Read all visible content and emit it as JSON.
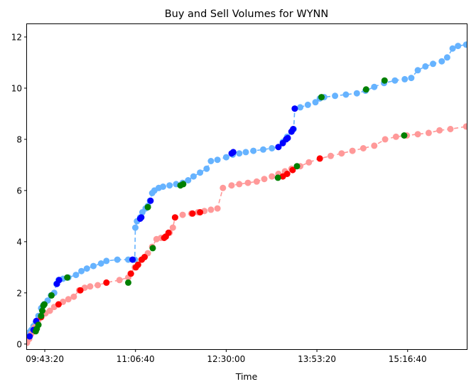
{
  "chart_data": {
    "type": "scatter",
    "title": "Buy and Sell Volumes for WYNN",
    "xlabel": "Time",
    "ylabel": "",
    "x_unit": "time of day (HH:MM:SS)",
    "xlim": [
      "09:27:00",
      "16:11:00"
    ],
    "ylim": [
      -0.2,
      12.5
    ],
    "x_ticks": [
      "09:43:20",
      "11:06:40",
      "12:30:00",
      "13:53:20",
      "15:16:40"
    ],
    "y_ticks": [
      0,
      2,
      4,
      6,
      8,
      10,
      12
    ],
    "grid": false,
    "legend": "none",
    "colors": {
      "buy_line": "#66b3ff",
      "sell_line": "#ff9999",
      "buy_marker": "#66b3ff",
      "sell_marker": "#ff9999",
      "large_buy": "#0000ff",
      "large_sell": "#ff0000",
      "block_trade": "#008000"
    },
    "series": [
      {
        "role": "buy_cumulative",
        "line_style": "dashed",
        "points": [
          [
            "09:27:30",
            0.3
          ],
          [
            "09:29:00",
            0.45
          ],
          [
            "09:31:00",
            0.55
          ],
          [
            "09:33:00",
            0.7
          ],
          [
            "09:35:00",
            0.85
          ],
          [
            "09:37:30",
            1.1
          ],
          [
            "09:40:00",
            1.4
          ],
          [
            "09:42:30",
            1.55
          ],
          [
            "09:46:00",
            1.7
          ],
          [
            "09:49:00",
            1.9
          ],
          [
            "09:52:00",
            2.0
          ],
          [
            "09:54:00",
            2.35
          ],
          [
            "09:56:00",
            2.5
          ],
          [
            "10:00:00",
            2.55
          ],
          [
            "10:05:00",
            2.6
          ],
          [
            "10:12:00",
            2.7
          ],
          [
            "10:17:00",
            2.85
          ],
          [
            "10:22:00",
            2.95
          ],
          [
            "10:28:00",
            3.05
          ],
          [
            "10:35:00",
            3.15
          ],
          [
            "10:40:00",
            3.25
          ],
          [
            "10:50:00",
            3.3
          ],
          [
            "11:00:00",
            3.3
          ],
          [
            "11:06:00",
            3.3
          ],
          [
            "11:06:30",
            4.55
          ],
          [
            "11:08:00",
            4.8
          ],
          [
            "11:11:00",
            4.95
          ],
          [
            "11:13:00",
            5.15
          ],
          [
            "11:16:00",
            5.3
          ],
          [
            "11:18:00",
            5.4
          ],
          [
            "11:20:00",
            5.6
          ],
          [
            "11:22:00",
            5.9
          ],
          [
            "11:24:00",
            6.0
          ],
          [
            "11:28:00",
            6.1
          ],
          [
            "11:32:00",
            6.15
          ],
          [
            "11:38:00",
            6.2
          ],
          [
            "11:44:00",
            6.25
          ],
          [
            "11:50:00",
            6.3
          ],
          [
            "11:55:00",
            6.4
          ],
          [
            "12:00:00",
            6.55
          ],
          [
            "12:06:00",
            6.7
          ],
          [
            "12:12:00",
            6.85
          ],
          [
            "12:16:00",
            7.15
          ],
          [
            "12:22:00",
            7.2
          ],
          [
            "12:30:00",
            7.3
          ],
          [
            "12:36:00",
            7.4
          ],
          [
            "12:42:00",
            7.45
          ],
          [
            "12:48:00",
            7.5
          ],
          [
            "12:55:00",
            7.55
          ],
          [
            "13:04:00",
            7.6
          ],
          [
            "13:12:00",
            7.65
          ],
          [
            "13:18:00",
            7.7
          ],
          [
            "13:22:00",
            7.9
          ],
          [
            "13:26:00",
            8.1
          ],
          [
            "13:30:00",
            8.3
          ],
          [
            "13:32:00",
            8.4
          ],
          [
            "13:33:00",
            9.2
          ],
          [
            "13:38:00",
            9.25
          ],
          [
            "13:45:00",
            9.35
          ],
          [
            "13:52:00",
            9.45
          ],
          [
            "13:56:00",
            9.6
          ],
          [
            "14:00:00",
            9.65
          ],
          [
            "14:10:00",
            9.7
          ],
          [
            "14:20:00",
            9.75
          ],
          [
            "14:30:00",
            9.8
          ],
          [
            "14:38:00",
            9.9
          ],
          [
            "14:46:00",
            10.05
          ],
          [
            "14:55:00",
            10.2
          ],
          [
            "15:05:00",
            10.3
          ],
          [
            "15:14:00",
            10.35
          ],
          [
            "15:20:00",
            10.4
          ],
          [
            "15:26:00",
            10.7
          ],
          [
            "15:33:00",
            10.85
          ],
          [
            "15:40:00",
            10.95
          ],
          [
            "15:48:00",
            11.05
          ],
          [
            "15:53:00",
            11.2
          ],
          [
            "15:58:00",
            11.55
          ],
          [
            "16:03:00",
            11.65
          ],
          [
            "16:10:30",
            11.7
          ]
        ]
      },
      {
        "role": "sell_cumulative",
        "line_style": "dashed",
        "points": [
          [
            "09:27:00",
            0.05
          ],
          [
            "09:29:00",
            0.2
          ],
          [
            "09:31:00",
            0.4
          ],
          [
            "09:34:00",
            0.65
          ],
          [
            "09:37:00",
            0.9
          ],
          [
            "09:40:00",
            1.05
          ],
          [
            "09:44:00",
            1.2
          ],
          [
            "09:48:00",
            1.3
          ],
          [
            "09:52:00",
            1.45
          ],
          [
            "09:56:00",
            1.55
          ],
          [
            "10:00:00",
            1.65
          ],
          [
            "10:05:00",
            1.75
          ],
          [
            "10:10:00",
            1.85
          ],
          [
            "10:15:00",
            2.1
          ],
          [
            "10:20:00",
            2.2
          ],
          [
            "10:25:00",
            2.25
          ],
          [
            "10:32:00",
            2.3
          ],
          [
            "10:40:00",
            2.4
          ],
          [
            "10:52:00",
            2.5
          ],
          [
            "11:00:00",
            2.6
          ],
          [
            "11:02:00",
            2.75
          ],
          [
            "11:06:00",
            3.0
          ],
          [
            "11:09:00",
            3.1
          ],
          [
            "11:12:00",
            3.3
          ],
          [
            "11:15:00",
            3.4
          ],
          [
            "11:18:00",
            3.55
          ],
          [
            "11:22:00",
            3.8
          ],
          [
            "11:26:00",
            4.1
          ],
          [
            "11:30:00",
            4.15
          ],
          [
            "11:34:00",
            4.2
          ],
          [
            "11:38:00",
            4.35
          ],
          [
            "11:41:00",
            4.55
          ],
          [
            "11:43:00",
            4.95
          ],
          [
            "11:50:00",
            5.05
          ],
          [
            "11:58:00",
            5.1
          ],
          [
            "12:04:00",
            5.15
          ],
          [
            "12:10:00",
            5.2
          ],
          [
            "12:16:00",
            5.25
          ],
          [
            "12:22:00",
            5.3
          ],
          [
            "12:27:00",
            6.1
          ],
          [
            "12:35:00",
            6.2
          ],
          [
            "12:42:00",
            6.25
          ],
          [
            "12:50:00",
            6.3
          ],
          [
            "12:58:00",
            6.35
          ],
          [
            "13:05:00",
            6.45
          ],
          [
            "13:12:00",
            6.55
          ],
          [
            "13:18:00",
            6.65
          ],
          [
            "13:24:00",
            6.75
          ],
          [
            "13:30:00",
            6.85
          ],
          [
            "13:38:00",
            6.95
          ],
          [
            "13:46:00",
            7.1
          ],
          [
            "13:56:00",
            7.25
          ],
          [
            "14:06:00",
            7.35
          ],
          [
            "14:16:00",
            7.45
          ],
          [
            "14:26:00",
            7.55
          ],
          [
            "14:36:00",
            7.65
          ],
          [
            "14:46:00",
            7.75
          ],
          [
            "14:56:00",
            8.0
          ],
          [
            "15:06:00",
            8.1
          ],
          [
            "15:16:00",
            8.15
          ],
          [
            "15:26:00",
            8.2
          ],
          [
            "15:36:00",
            8.25
          ],
          [
            "15:46:00",
            8.35
          ],
          [
            "15:56:00",
            8.4
          ],
          [
            "16:10:30",
            8.5
          ]
        ]
      },
      {
        "role": "large_buy",
        "points": [
          [
            "09:29:30",
            0.3
          ],
          [
            "09:33:00",
            0.55
          ],
          [
            "09:35:30",
            0.9
          ],
          [
            "09:54:30",
            2.35
          ],
          [
            "09:56:30",
            2.5
          ],
          [
            "11:04:00",
            3.3
          ],
          [
            "11:11:00",
            4.9
          ],
          [
            "11:12:00",
            4.95
          ],
          [
            "11:20:30",
            5.6
          ],
          [
            "12:35:00",
            7.45
          ],
          [
            "12:36:30",
            7.5
          ],
          [
            "13:18:00",
            7.7
          ],
          [
            "13:22:00",
            7.85
          ],
          [
            "13:25:00",
            8.0
          ],
          [
            "13:26:30",
            8.05
          ],
          [
            "13:30:00",
            8.3
          ],
          [
            "13:31:30",
            8.4
          ],
          [
            "13:33:00",
            9.2
          ]
        ]
      },
      {
        "role": "large_sell",
        "points": [
          [
            "09:40:00",
            1.05
          ],
          [
            "09:56:00",
            1.55
          ],
          [
            "10:16:00",
            2.1
          ],
          [
            "10:40:00",
            2.4
          ],
          [
            "11:02:30",
            2.75
          ],
          [
            "11:07:00",
            3.0
          ],
          [
            "11:09:00",
            3.1
          ],
          [
            "11:12:30",
            3.3
          ],
          [
            "11:15:00",
            3.4
          ],
          [
            "11:33:00",
            4.15
          ],
          [
            "11:34:30",
            4.2
          ],
          [
            "11:37:00",
            4.35
          ],
          [
            "11:43:00",
            4.95
          ],
          [
            "11:59:00",
            5.1
          ],
          [
            "12:06:00",
            5.15
          ],
          [
            "13:22:00",
            6.55
          ],
          [
            "13:26:00",
            6.65
          ],
          [
            "13:31:00",
            6.8
          ],
          [
            "13:56:00",
            7.25
          ]
        ]
      },
      {
        "role": "block_trade",
        "points": [
          [
            "09:35:00",
            0.5
          ],
          [
            "09:36:00",
            0.6
          ],
          [
            "09:37:30",
            0.75
          ],
          [
            "09:40:00",
            1.1
          ],
          [
            "09:41:00",
            1.3
          ],
          [
            "09:42:00",
            1.5
          ],
          [
            "09:43:00",
            1.55
          ],
          [
            "09:49:30",
            1.9
          ],
          [
            "10:04:00",
            2.6
          ],
          [
            "11:00:00",
            2.4
          ],
          [
            "11:18:00",
            5.35
          ],
          [
            "11:22:30",
            3.75
          ],
          [
            "11:48:00",
            6.2
          ],
          [
            "11:50:30",
            6.25
          ],
          [
            "13:17:30",
            6.5
          ],
          [
            "13:35:00",
            6.95
          ],
          [
            "13:57:30",
            9.65
          ],
          [
            "14:38:30",
            9.95
          ],
          [
            "14:55:30",
            10.3
          ],
          [
            "15:13:30",
            8.15
          ]
        ]
      }
    ]
  }
}
